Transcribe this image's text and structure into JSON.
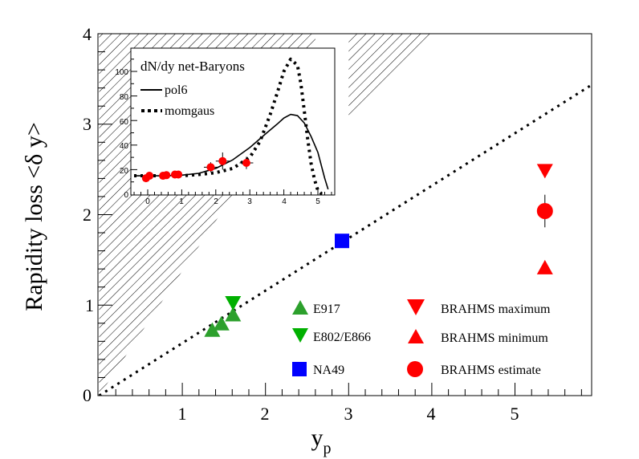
{
  "chart_data": [
    {
      "type": "scatter",
      "name": "main",
      "xlabel": "y",
      "xlabel_sub": "p",
      "ylabel": "Rapidity loss <δ y>",
      "xlim": [
        0,
        5.9
      ],
      "ylim": [
        0,
        4
      ],
      "xticks": [
        1,
        2,
        3,
        4,
        5
      ],
      "xtick_labels": [
        "1",
        "2",
        "3",
        "4",
        "5"
      ],
      "yticks": [
        0,
        1,
        2,
        3,
        4
      ],
      "ytick_labels": [
        "0",
        "1",
        "2",
        "3",
        "4"
      ],
      "grid": false,
      "legend_position": "bottom-right",
      "series": [
        {
          "name": "E917",
          "marker": "triangle-up",
          "color": "#2ca02c",
          "points": [
            [
              1.36,
              0.73
            ],
            [
              1.47,
              0.8
            ],
            [
              1.61,
              0.9
            ]
          ]
        },
        {
          "name": "E802/E866",
          "marker": "triangle-down",
          "color": "#00b000",
          "points": [
            [
              1.61,
              1.02
            ]
          ]
        },
        {
          "name": "NA49",
          "marker": "square",
          "color": "#0000ff",
          "points": [
            [
              2.92,
              1.71
            ]
          ]
        },
        {
          "name": "BRAHMS maximum",
          "marker": "triangle-down",
          "color": "#ff0000",
          "points": [
            [
              5.36,
              2.48
            ]
          ]
        },
        {
          "name": "BRAHMS minimum",
          "marker": "triangle-up",
          "color": "#ff0000",
          "points": [
            [
              5.36,
              1.42
            ]
          ]
        },
        {
          "name": "BRAHMS estimate",
          "marker": "circle",
          "color": "#ff0000",
          "points": [
            [
              5.36,
              2.04
            ]
          ],
          "yerr": [
            0.18
          ]
        }
      ],
      "reference_line": {
        "style": "dotted",
        "slope": 0.58,
        "x_range": [
          0,
          5.9
        ]
      },
      "hatched_regions": [
        {
          "name": "excluded-left",
          "polygon": [
            [
              0,
              0
            ],
            [
              0,
              4
            ],
            [
              2.6,
              4
            ],
            [
              2.6,
              3.58
            ]
          ]
        },
        {
          "name": "excluded-top",
          "polygon": [
            [
              3.0,
              4
            ],
            [
              4.0,
              4
            ],
            [
              3.0,
              3.05
            ]
          ]
        }
      ]
    },
    {
      "type": "line",
      "name": "inset",
      "title": "dN/dy net-Baryons",
      "xlim": [
        -0.45,
        5.5
      ],
      "ylim": [
        0,
        115
      ],
      "xticks": [
        0,
        1,
        2,
        3,
        4,
        5
      ],
      "xtick_labels": [
        "0",
        "1",
        "2",
        "3",
        "4",
        "5"
      ],
      "yticks": [
        0,
        20,
        40,
        60,
        80,
        100
      ],
      "ytick_labels": [
        "0",
        "20",
        "40",
        "60",
        "80",
        "100"
      ],
      "legend_position": "top-left",
      "series": [
        {
          "name": "pol6",
          "style": "solid",
          "x": [
            -0.4,
            0,
            0.5,
            1.0,
            1.5,
            2.0,
            2.5,
            3.0,
            3.5,
            3.8,
            4.0,
            4.2,
            4.4,
            4.6,
            4.8,
            5.0,
            5.2,
            5.3
          ],
          "y": [
            15,
            15,
            15,
            15.5,
            17,
            21,
            28,
            38,
            50,
            57,
            62,
            65,
            64,
            58,
            47,
            34,
            13,
            4
          ]
        },
        {
          "name": "momgaus",
          "style": "dotted",
          "x": [
            -0.4,
            0,
            0.5,
            1.0,
            1.5,
            2.0,
            2.5,
            3.0,
            3.3,
            3.6,
            3.8,
            4.0,
            4.2,
            4.4,
            4.5,
            4.6,
            4.7,
            4.8,
            4.9,
            5.0,
            5.1,
            5.2
          ],
          "y": [
            15,
            15,
            15,
            15,
            16,
            17.5,
            21,
            30,
            43,
            65,
            82,
            100,
            110,
            105,
            90,
            68,
            45,
            25,
            12,
            3,
            0.5,
            0
          ]
        }
      ],
      "data_points": {
        "color": "#ff0000",
        "x": [
          -0.05,
          0.05,
          0.45,
          0.55,
          0.8,
          0.9,
          1.85,
          2.2,
          2.9
        ],
        "y": [
          13,
          15,
          15,
          15.5,
          16,
          16,
          22,
          27,
          25.5
        ],
        "yerr": [
          0,
          0,
          0,
          0,
          0,
          0,
          4,
          7,
          5
        ],
        "xerr": [
          0,
          0,
          0,
          0,
          0,
          0,
          0.2,
          0.2,
          0.2
        ]
      }
    }
  ],
  "legend": {
    "items": [
      {
        "label": "E917"
      },
      {
        "label": "E802/E866"
      },
      {
        "label": "NA49"
      },
      {
        "label": "BRAHMS maximum"
      },
      {
        "label": "BRAHMS minimum"
      },
      {
        "label": "BRAHMS estimate"
      }
    ]
  },
  "inset_legend": {
    "title": "dN/dy net-Baryons",
    "items": [
      {
        "label": "pol6"
      },
      {
        "label": "momgaus"
      }
    ]
  },
  "axes": {
    "ylabel": "Rapidity loss <δ y>",
    "xlabel_main": "y",
    "xlabel_sub": "p"
  }
}
